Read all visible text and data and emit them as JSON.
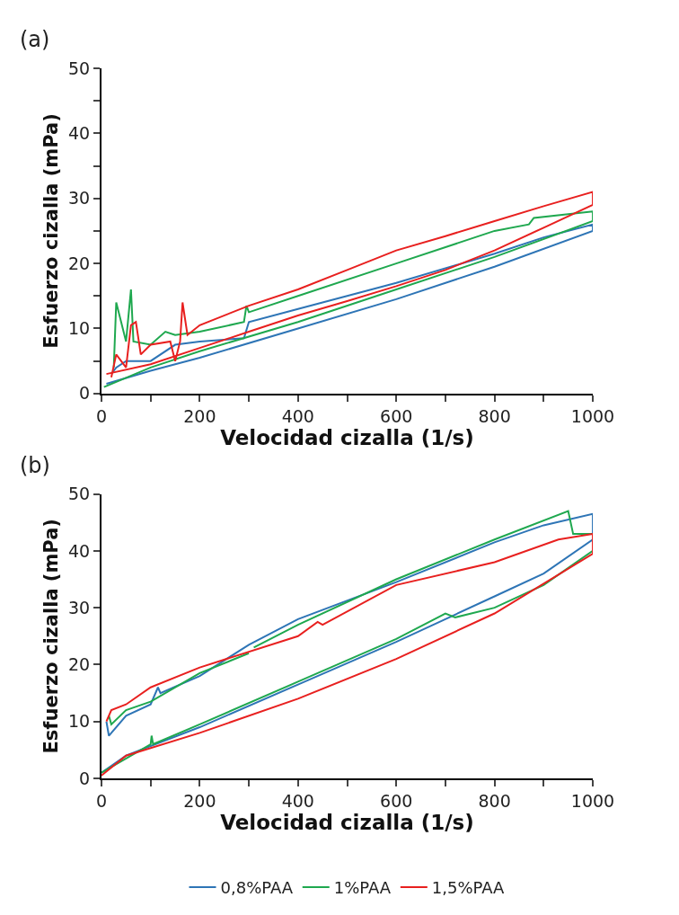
{
  "chart_data": [
    {
      "type": "line",
      "title": "(a)",
      "xlabel": "Velocidad cizalla (1/s)",
      "ylabel": "Esfuerzo cizalla (mPa)",
      "xlim": [
        0,
        1000
      ],
      "ylim": [
        0,
        50
      ],
      "marker": "none",
      "line_style": "solid",
      "xticks": [
        0,
        {
          "value": 100,
          "label": null
        },
        200,
        {
          "value": 300,
          "label": null
        },
        400,
        {
          "value": 500,
          "label": null
        },
        600,
        {
          "value": 700,
          "label": null
        },
        800,
        {
          "value": 900,
          "label": null
        },
        1000
      ],
      "yticks": [
        0,
        {
          "value": 5,
          "label": null
        },
        10,
        {
          "value": 15,
          "label": null
        },
        20,
        {
          "value": 25,
          "label": null
        },
        30,
        {
          "value": 35,
          "label": null
        },
        40,
        {
          "value": 45,
          "label": null
        },
        50
      ],
      "series": [
        {
          "color": "#2e75b6",
          "x": [
            10,
            100,
            200,
            400,
            600,
            800,
            1000,
            1000,
            900,
            800,
            600,
            400,
            300,
            290,
            200,
            150,
            100,
            50,
            30,
            20
          ],
          "values": [
            1.5,
            3.5,
            5.5,
            10,
            14.5,
            19.5,
            25,
            26,
            24,
            21.5,
            17,
            13,
            11,
            8.5,
            8,
            7.5,
            5,
            5,
            4,
            3
          ]
        },
        {
          "color": "#1fa84f",
          "x": [
            5,
            100,
            200,
            400,
            600,
            800,
            1000,
            1000,
            880,
            870,
            800,
            600,
            400,
            300,
            295,
            290,
            200,
            150,
            130,
            100,
            65,
            60,
            50,
            30,
            25
          ],
          "values": [
            1,
            4,
            6.5,
            11,
            16,
            21,
            26.5,
            28,
            27,
            26,
            25,
            20,
            15,
            12.5,
            13.5,
            11,
            9.5,
            9,
            9.5,
            7.5,
            8,
            16,
            8,
            14,
            4
          ]
        },
        {
          "color": "#e8201f",
          "x": [
            10,
            100,
            200,
            300,
            400,
            500,
            600,
            700,
            800,
            900,
            1000,
            1000,
            900,
            800,
            700,
            600,
            500,
            400,
            300,
            200,
            175,
            165,
            160,
            150,
            140,
            100,
            80,
            70,
            60,
            50,
            30,
            20
          ],
          "values": [
            3,
            4.5,
            7,
            9.5,
            12,
            14.2,
            16.5,
            19,
            22,
            25.5,
            29,
            31,
            28.8,
            26.5,
            24.2,
            22,
            19,
            16,
            13.5,
            10.5,
            9,
            14,
            8,
            5,
            8,
            7.5,
            6,
            11,
            10.5,
            4,
            6,
            2.5
          ]
        }
      ]
    },
    {
      "type": "line",
      "title": "(b)",
      "xlabel": "Velocidad cizalla (1/s)",
      "ylabel": "Esfuerzo cizalla (mPa)",
      "xlim": [
        0,
        1000
      ],
      "ylim": [
        0,
        50
      ],
      "marker": "none",
      "line_style": "solid",
      "legend": "bottom",
      "xticks": [
        0,
        {
          "value": 100,
          "label": null
        },
        200,
        {
          "value": 300,
          "label": null
        },
        400,
        {
          "value": 500,
          "label": null
        },
        600,
        {
          "value": 700,
          "label": null
        },
        800,
        {
          "value": 900,
          "label": null
        },
        1000
      ],
      "yticks": [
        0,
        10,
        20,
        30,
        40,
        50
      ],
      "series": [
        {
          "name": "0,8%PAA",
          "color": "#2e75b6",
          "x": [
            0,
            50,
            200,
            400,
            600,
            700,
            800,
            900,
            1000,
            1000,
            900,
            800,
            600,
            400,
            300,
            200,
            120,
            115,
            100,
            50,
            15,
            10
          ],
          "values": [
            1,
            4,
            9,
            16.5,
            24,
            28,
            32,
            36,
            42,
            46.5,
            44.5,
            41.5,
            34.5,
            28,
            23.5,
            18,
            15,
            16,
            13,
            11,
            7.5,
            10
          ]
        },
        {
          "name": "1%PAA",
          "color": "#1fa84f",
          "x": [
            0,
            100,
            102,
            105,
            200,
            400,
            600,
            700,
            720,
            800,
            900,
            1000,
            1000,
            960,
            950,
            800,
            600,
            400,
            310,
            null,
            300,
            200,
            100,
            50,
            20,
            15
          ],
          "values": [
            1,
            6,
            7.5,
            6,
            9.5,
            17,
            24.5,
            29,
            28.3,
            30,
            34,
            40,
            43,
            43,
            47,
            42,
            35,
            27,
            23,
            null,
            22,
            18.5,
            13.5,
            12,
            9.5,
            11
          ]
        },
        {
          "name": "1,5%PAA",
          "color": "#e8201f",
          "x": [
            0,
            50,
            200,
            400,
            600,
            800,
            1000,
            1000,
            930,
            800,
            600,
            450,
            440,
            400,
            200,
            100,
            50,
            20,
            10
          ],
          "values": [
            0.5,
            4,
            8,
            14,
            21,
            29,
            39.5,
            43,
            42,
            38,
            34,
            27,
            27.5,
            25,
            19.5,
            16,
            13,
            12,
            10
          ]
        }
      ]
    }
  ]
}
